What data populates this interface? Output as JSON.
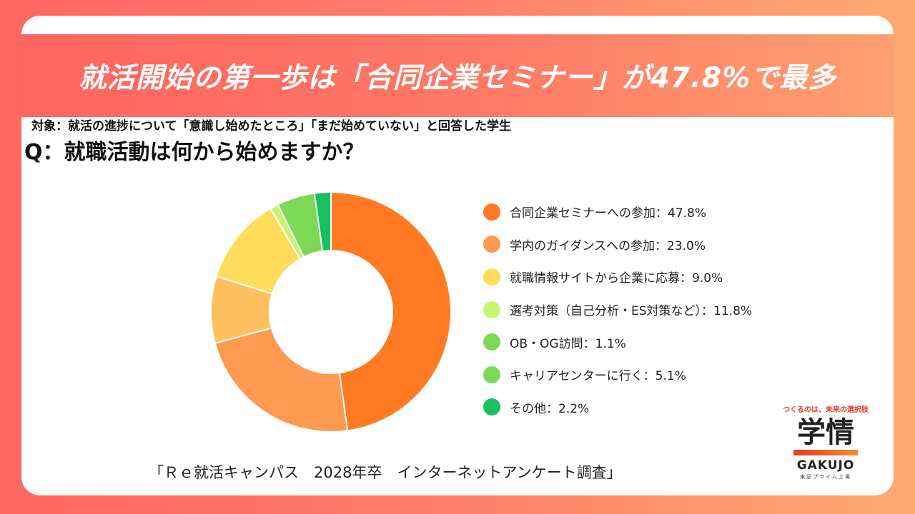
{
  "banner": {
    "title": "就活開始の第一歩は「合同企業セミナー」が47.8%で最多"
  },
  "subject": "対象：就活の進捗について「意識し始めたところ」「まだ始めていない」と回答した学生",
  "question": "Q：就職活動は何から始めますか？",
  "source": "「Ｒｅ就活キャンパス　2028年卒　インターネットアンケート調査」",
  "logo": {
    "tagline": "つくるのは、未来の選択肢",
    "mark": "学情",
    "name": "GAKUJO",
    "sub": "東証プライム上場"
  },
  "chart_data": {
    "type": "pie",
    "style": "donut",
    "title": "Q：就職活動は何から始めますか？",
    "series": [
      {
        "label": "合同企業セミナーへの参加：47.8%",
        "value": 47.8,
        "color": "#ff7a22"
      },
      {
        "label": "学内のガイダンスへの参加：23.0%",
        "value": 23.0,
        "color": "#ff9a50"
      },
      {
        "label": "就職情報サイトから企業に応募：9.0%",
        "value": 9.0,
        "color": "#ffc060"
      },
      {
        "label": "選考対策（自己分析・ES対策など）：11.8%",
        "value": 11.8,
        "color": "#ffdc5c"
      },
      {
        "label": "OB・OG訪問：1.1%",
        "value": 1.1,
        "color": "#c8f570"
      },
      {
        "label": "キャリアセンターに行く：5.1%",
        "value": 5.1,
        "color": "#7dd856"
      },
      {
        "label": "その他：2.2%",
        "value": 2.2,
        "color": "#16c160"
      }
    ],
    "legend_swatch_colors": [
      "#ff7a22",
      "#ff9a50",
      "#ffdc5c",
      "#c8f570",
      "#7dd856",
      "#7dd856",
      "#16c160"
    ],
    "legend_position": "right"
  }
}
